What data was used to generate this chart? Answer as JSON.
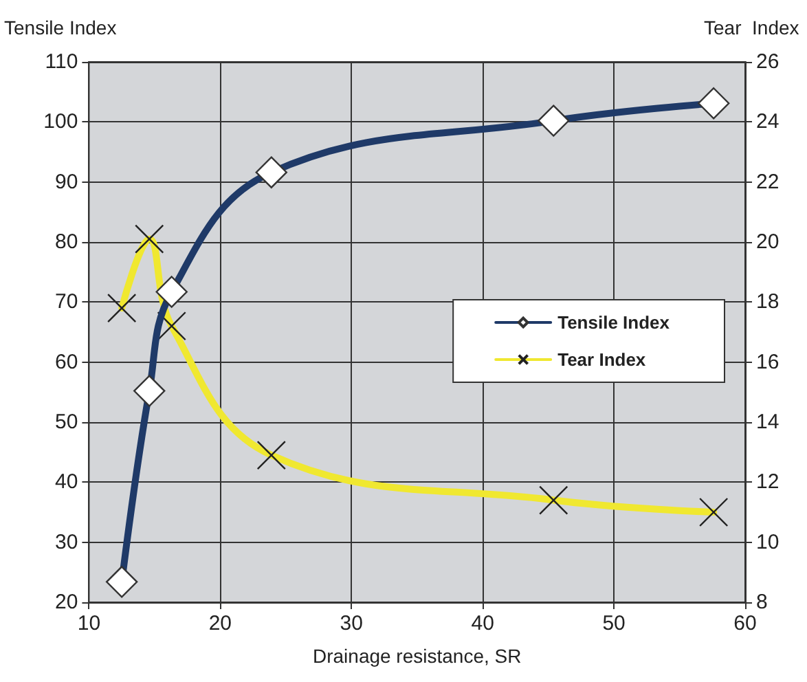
{
  "chart_data": {
    "type": "line",
    "xlabel": "Drainage resistance, SR",
    "ylabel": "Tensile Index",
    "y2label": "Tear  Index",
    "series": [
      {
        "name": "Tensile Index",
        "color": "#1f3a68",
        "marker": "diamond",
        "x": [
          12.5,
          14.6,
          16.3,
          23.9,
          45.4,
          57.6
        ],
        "values": [
          23.4,
          55.2,
          71.7,
          91.6,
          100.2,
          103.1
        ]
      },
      {
        "name": "Tear Index",
        "color": "#f0e830",
        "marker": "cross",
        "axis": "y2",
        "x": [
          12.5,
          14.6,
          16.3,
          23.9,
          45.4,
          57.6
        ],
        "values": [
          17.8,
          20.1,
          17.2,
          12.9,
          11.4,
          11.0
        ]
      }
    ],
    "xlim": [
      10,
      60
    ],
    "xticks": [
      10,
      20,
      30,
      40,
      50,
      60
    ],
    "ylim": [
      20,
      110
    ],
    "yticks": [
      20,
      30,
      40,
      50,
      60,
      70,
      80,
      90,
      100,
      110
    ],
    "y2lim": [
      8,
      26
    ],
    "y2ticks": [
      8,
      10,
      12,
      14,
      16,
      18,
      20,
      22,
      24,
      26
    ],
    "grid": true,
    "legend": "right",
    "line_style": "solid"
  }
}
